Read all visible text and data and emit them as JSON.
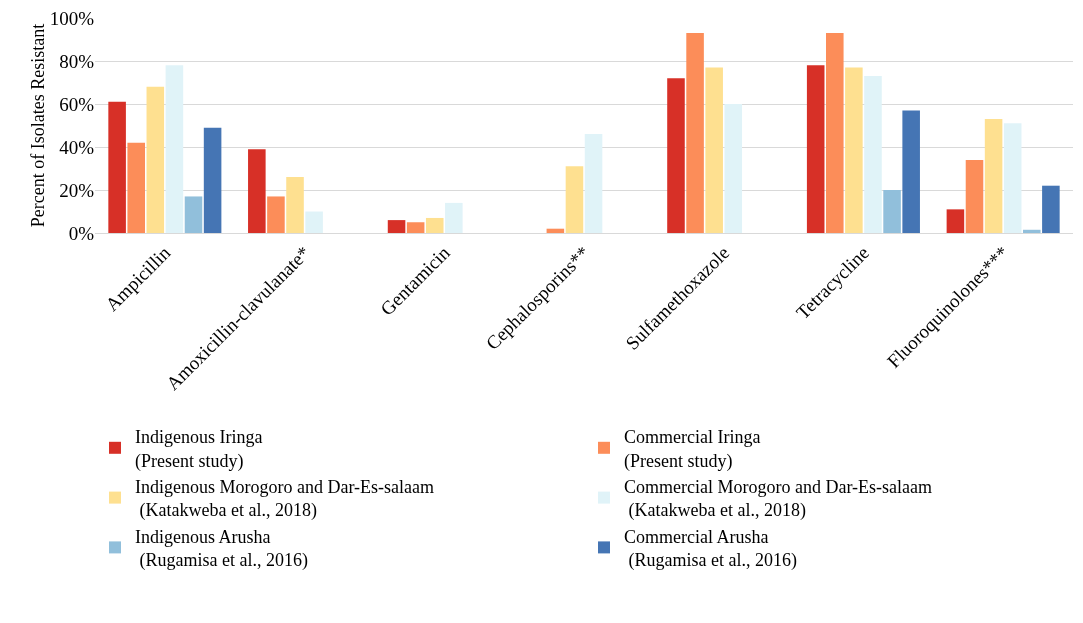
{
  "chart_data": {
    "type": "bar",
    "ylabel": "Percent of Isolates Resistant",
    "categories": [
      "Ampicillin",
      "Amoxicillin-clavulanate*",
      "Gentamicin",
      "Cephalosporins**",
      "Sulfamethoxazole",
      "Tetracycline",
      "Fluoroquinolones***"
    ],
    "series": [
      {
        "name": "Indigenous Iringa\n(Present study)",
        "color": "#d73027",
        "values": [
          61,
          39,
          6,
          null,
          72,
          78,
          11
        ]
      },
      {
        "name": "Commercial Iringa\n(Present study)",
        "color": "#fc8d59",
        "values": [
          42,
          17,
          5,
          2,
          93,
          93,
          34
        ]
      },
      {
        "name": "Indigenous Morogoro and Dar-Es-salaam\n (Katakweba et al., 2018)",
        "color": "#fee090",
        "values": [
          68,
          26,
          7,
          31,
          77,
          77,
          53
        ]
      },
      {
        "name": "Commercial Morogoro and Dar-Es-salaam\n (Katakweba et al., 2018)",
        "color": "#e0f3f8",
        "values": [
          78,
          10,
          14,
          46,
          60,
          73,
          51
        ]
      },
      {
        "name": "Indigenous Arusha\n (Rugamisa et al., 2016)",
        "color": "#91bfdb",
        "values": [
          17,
          null,
          null,
          null,
          null,
          20,
          1.5
        ]
      },
      {
        "name": "Commercial Arusha\n (Rugamisa et al., 2016)",
        "color": "#4575b4",
        "values": [
          49,
          null,
          null,
          null,
          null,
          57,
          22
        ]
      }
    ],
    "ylim": [
      0,
      100
    ],
    "yticks": [
      {
        "value": 0,
        "label": "0%"
      },
      {
        "value": 20,
        "label": "20%"
      },
      {
        "value": 40,
        "label": "40%"
      },
      {
        "value": 60,
        "label": "60%"
      },
      {
        "value": 80,
        "label": "80%"
      },
      {
        "value": 100,
        "label": "100%"
      }
    ],
    "grid": "y",
    "legend": "bottom"
  }
}
